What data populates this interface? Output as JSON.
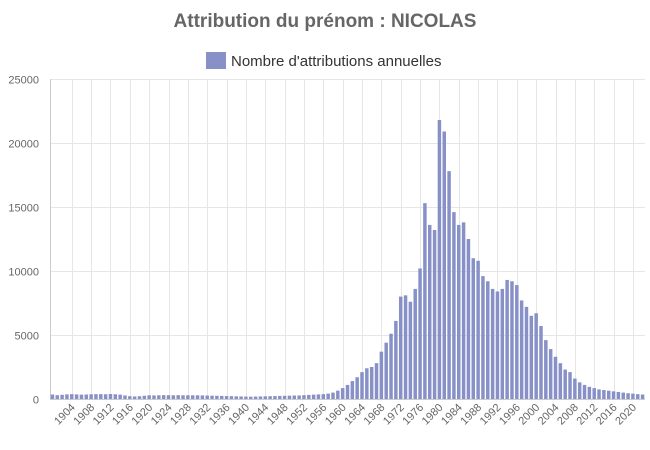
{
  "chart_data": {
    "type": "bar",
    "title": "Attribution du prénom : NICOLAS",
    "legend": {
      "label": "Nombre d'attributions annuelles",
      "placement": "top-center"
    },
    "bar_color": "#8791c8",
    "xlabel": "",
    "ylabel": "",
    "ylim": [
      0,
      25000
    ],
    "y_ticks": [
      0,
      5000,
      10000,
      15000,
      20000,
      25000
    ],
    "x_start": 1900,
    "x_end": 2022,
    "x_tick_labels": [
      "1904",
      "1908",
      "1912",
      "1916",
      "1920",
      "1924",
      "1928",
      "1932",
      "1936",
      "1940",
      "1944",
      "1948",
      "1952",
      "1956",
      "1960",
      "1964",
      "1968",
      "1972",
      "1976",
      "1980",
      "1984",
      "1988",
      "1992",
      "1996",
      "2000",
      "2004",
      "2008",
      "2012",
      "2016",
      "2020"
    ],
    "grid": true,
    "years": [
      1900,
      1901,
      1902,
      1903,
      1904,
      1905,
      1906,
      1907,
      1908,
      1909,
      1910,
      1911,
      1912,
      1913,
      1914,
      1915,
      1916,
      1917,
      1918,
      1919,
      1920,
      1921,
      1922,
      1923,
      1924,
      1925,
      1926,
      1927,
      1928,
      1929,
      1930,
      1931,
      1932,
      1933,
      1934,
      1935,
      1936,
      1937,
      1938,
      1939,
      1940,
      1941,
      1942,
      1943,
      1944,
      1945,
      1946,
      1947,
      1948,
      1949,
      1950,
      1951,
      1952,
      1953,
      1954,
      1955,
      1956,
      1957,
      1958,
      1959,
      1960,
      1961,
      1962,
      1963,
      1964,
      1965,
      1966,
      1967,
      1968,
      1969,
      1970,
      1971,
      1972,
      1973,
      1974,
      1975,
      1976,
      1977,
      1978,
      1979,
      1980,
      1981,
      1982,
      1983,
      1984,
      1985,
      1986,
      1987,
      1988,
      1989,
      1990,
      1991,
      1992,
      1993,
      1994,
      1995,
      1996,
      1997,
      1998,
      1999,
      2000,
      2001,
      2002,
      2003,
      2004,
      2005,
      2006,
      2007,
      2008,
      2009,
      2010,
      2011,
      2012,
      2013,
      2014,
      2015,
      2016,
      2017,
      2018,
      2019,
      2020,
      2021,
      2022
    ],
    "values": [
      350,
      300,
      330,
      360,
      380,
      360,
      340,
      350,
      370,
      380,
      380,
      370,
      390,
      370,
      340,
      280,
      220,
      200,
      220,
      250,
      290,
      280,
      290,
      300,
      300,
      290,
      300,
      290,
      290,
      290,
      290,
      280,
      270,
      260,
      250,
      240,
      230,
      220,
      210,
      200,
      190,
      180,
      190,
      200,
      210,
      220,
      230,
      240,
      250,
      260,
      270,
      280,
      300,
      320,
      340,
      360,
      380,
      420,
      500,
      650,
      850,
      1100,
      1400,
      1700,
      2100,
      2400,
      2500,
      2800,
      3700,
      4400,
      5100,
      6100,
      8000,
      8100,
      7600,
      8600,
      10200,
      15300,
      13600,
      13200,
      21800,
      20900,
      17800,
      14600,
      13600,
      13800,
      12500,
      11000,
      10800,
      9600,
      9200,
      8600,
      8400,
      8600,
      9300,
      9200,
      8900,
      7700,
      7200,
      6500,
      6700,
      5700,
      4600,
      3900,
      3300,
      2800,
      2300,
      2100,
      1600,
      1300,
      1100,
      950,
      850,
      750,
      700,
      650,
      600,
      550,
      500,
      450,
      420,
      380,
      350
    ]
  }
}
